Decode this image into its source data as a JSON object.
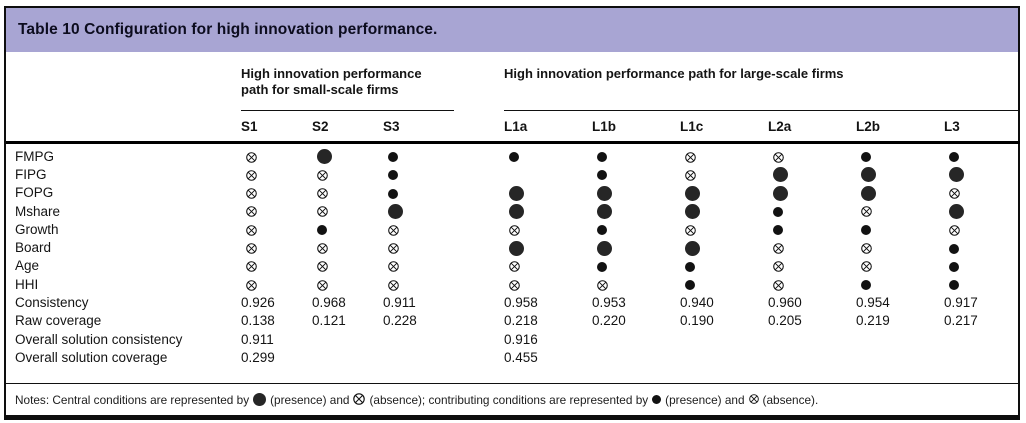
{
  "title": "Table 10 Configuration for high innovation performance.",
  "groups": [
    {
      "label": "High innovation performance path for small-scale firms",
      "columns": [
        "S1",
        "S2",
        "S3"
      ]
    },
    {
      "label": "High innovation performance path for large-scale firms",
      "columns": [
        "L1a",
        "L1b",
        "L1c",
        "L2a",
        "L2b",
        "L3"
      ]
    }
  ],
  "symbol_meaning": {
    "P": "central-presence (large filled circle)",
    "p": "contributing-presence (small filled circle)",
    "a": "absence (crossed circle)",
    "": "blank"
  },
  "rows": [
    {
      "label": "FMPG",
      "cells": [
        "a",
        "P",
        "p",
        "p",
        "p",
        "a",
        "a",
        "p",
        "p"
      ]
    },
    {
      "label": "FIPG",
      "cells": [
        "a",
        "a",
        "p",
        "",
        "p",
        "a",
        "P",
        "P",
        "P"
      ]
    },
    {
      "label": "FOPG",
      "cells": [
        "a",
        "a",
        "p",
        "P",
        "P",
        "P",
        "P",
        "P",
        "a"
      ]
    },
    {
      "label": "Mshare",
      "cells": [
        "a",
        "a",
        "P",
        "P",
        "P",
        "P",
        "p",
        "a",
        "P"
      ]
    },
    {
      "label": "Growth",
      "cells": [
        "a",
        "p",
        "a",
        "a",
        "p",
        "a",
        "p",
        "p",
        "a"
      ]
    },
    {
      "label": "Board",
      "cells": [
        "a",
        "a",
        "a",
        "P",
        "P",
        "P",
        "a",
        "a",
        "p"
      ]
    },
    {
      "label": "Age",
      "cells": [
        "a",
        "a",
        "a",
        "a",
        "p",
        "p",
        "a",
        "a",
        "p"
      ]
    },
    {
      "label": "HHI",
      "cells": [
        "a",
        "a",
        "a",
        "a",
        "a",
        "p",
        "a",
        "p",
        "p"
      ]
    }
  ],
  "stat_rows": [
    {
      "label": "Consistency",
      "values": [
        "0.926",
        "0.968",
        "0.911",
        "0.958",
        "0.953",
        "0.940",
        "0.960",
        "0.954",
        "0.917"
      ]
    },
    {
      "label": "Raw coverage",
      "values": [
        "0.138",
        "0.121",
        "0.228",
        "0.218",
        "0.220",
        "0.190",
        "0.205",
        "0.219",
        "0.217"
      ]
    },
    {
      "label": "Overall solution consistency",
      "values": [
        "0.911",
        "",
        "",
        "0.916",
        "",
        "",
        "",
        "",
        ""
      ]
    },
    {
      "label": "Overall solution coverage",
      "values": [
        "0.299",
        "",
        "",
        "0.455",
        "",
        "",
        "",
        "",
        ""
      ]
    }
  ],
  "notes": {
    "seg1": "Notes: Central conditions are represented by",
    "seg2": "(presence) and",
    "seg3": "(absence); contributing conditions are represented by",
    "seg4": "(presence) and",
    "seg5": "(absence)."
  },
  "colors": {
    "title_bar": "#a8a5d3",
    "symbol": "#1a1a1a",
    "border": "#0e0e0e"
  }
}
